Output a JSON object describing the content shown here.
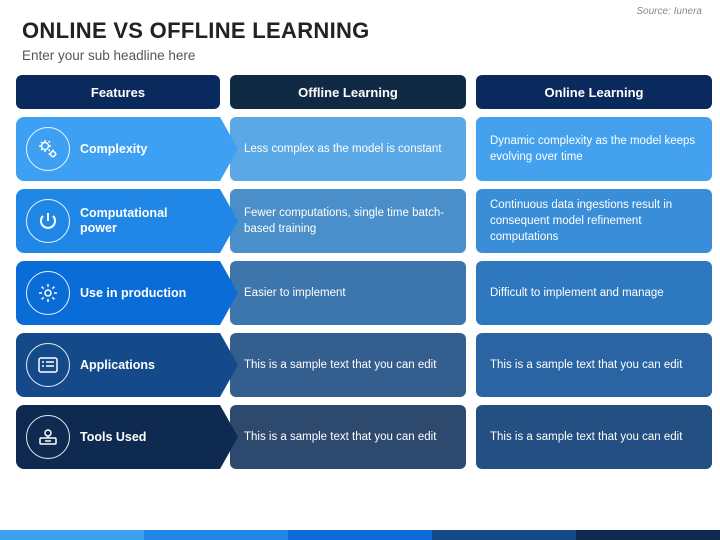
{
  "source_label": "Source: Iunera",
  "title": "ONLINE VS OFFLINE LEARNING",
  "subtitle": "Enter your sub headline here",
  "headers": {
    "features": {
      "label": "Features",
      "bg": "#0a2a5e"
    },
    "offline": {
      "label": "Offline Learning",
      "bg": "#102a44"
    },
    "online": {
      "label": "Online Learning",
      "bg": "#0a2a5e"
    }
  },
  "rows": [
    {
      "feature": "Complexity",
      "icon": "gears",
      "color": "#3ea0f3",
      "offline": "Less complex as the model is constant",
      "off_bg": "#5aa9e6",
      "online": "Dynamic complexity as the model keeps evolving over time",
      "on_bg": "#43a1ee"
    },
    {
      "feature": "Computational power",
      "icon": "power",
      "color": "#2187e7",
      "offline": "Fewer computations, single time batch-based training",
      "off_bg": "#4a8fc9",
      "online": "Continuous data ingestions result in consequent model refinement computations",
      "on_bg": "#3a8ed8"
    },
    {
      "feature": "Use in production",
      "icon": "cog",
      "color": "#0a6cd6",
      "offline": "Easier to implement",
      "off_bg": "#3d76ac",
      "online": "Difficult to implement and manage",
      "on_bg": "#2e78bf"
    },
    {
      "feature": "Applications",
      "icon": "list",
      "color": "#154a8a",
      "offline": "This is a sample text that you can edit",
      "off_bg": "#345e8e",
      "online": "This is a sample text that you can edit",
      "on_bg": "#2a64a2"
    },
    {
      "feature": "Tools Used",
      "icon": "tools",
      "color": "#0e2a50",
      "offline": "This is a sample text that you can edit",
      "off_bg": "#2d4a6e",
      "online": "This is a sample text that you can edit",
      "on_bg": "#244f82"
    }
  ],
  "footer_colors": [
    "#3ea0f3",
    "#2187e7",
    "#0a6cd6",
    "#154a8a",
    "#0e2a50"
  ]
}
